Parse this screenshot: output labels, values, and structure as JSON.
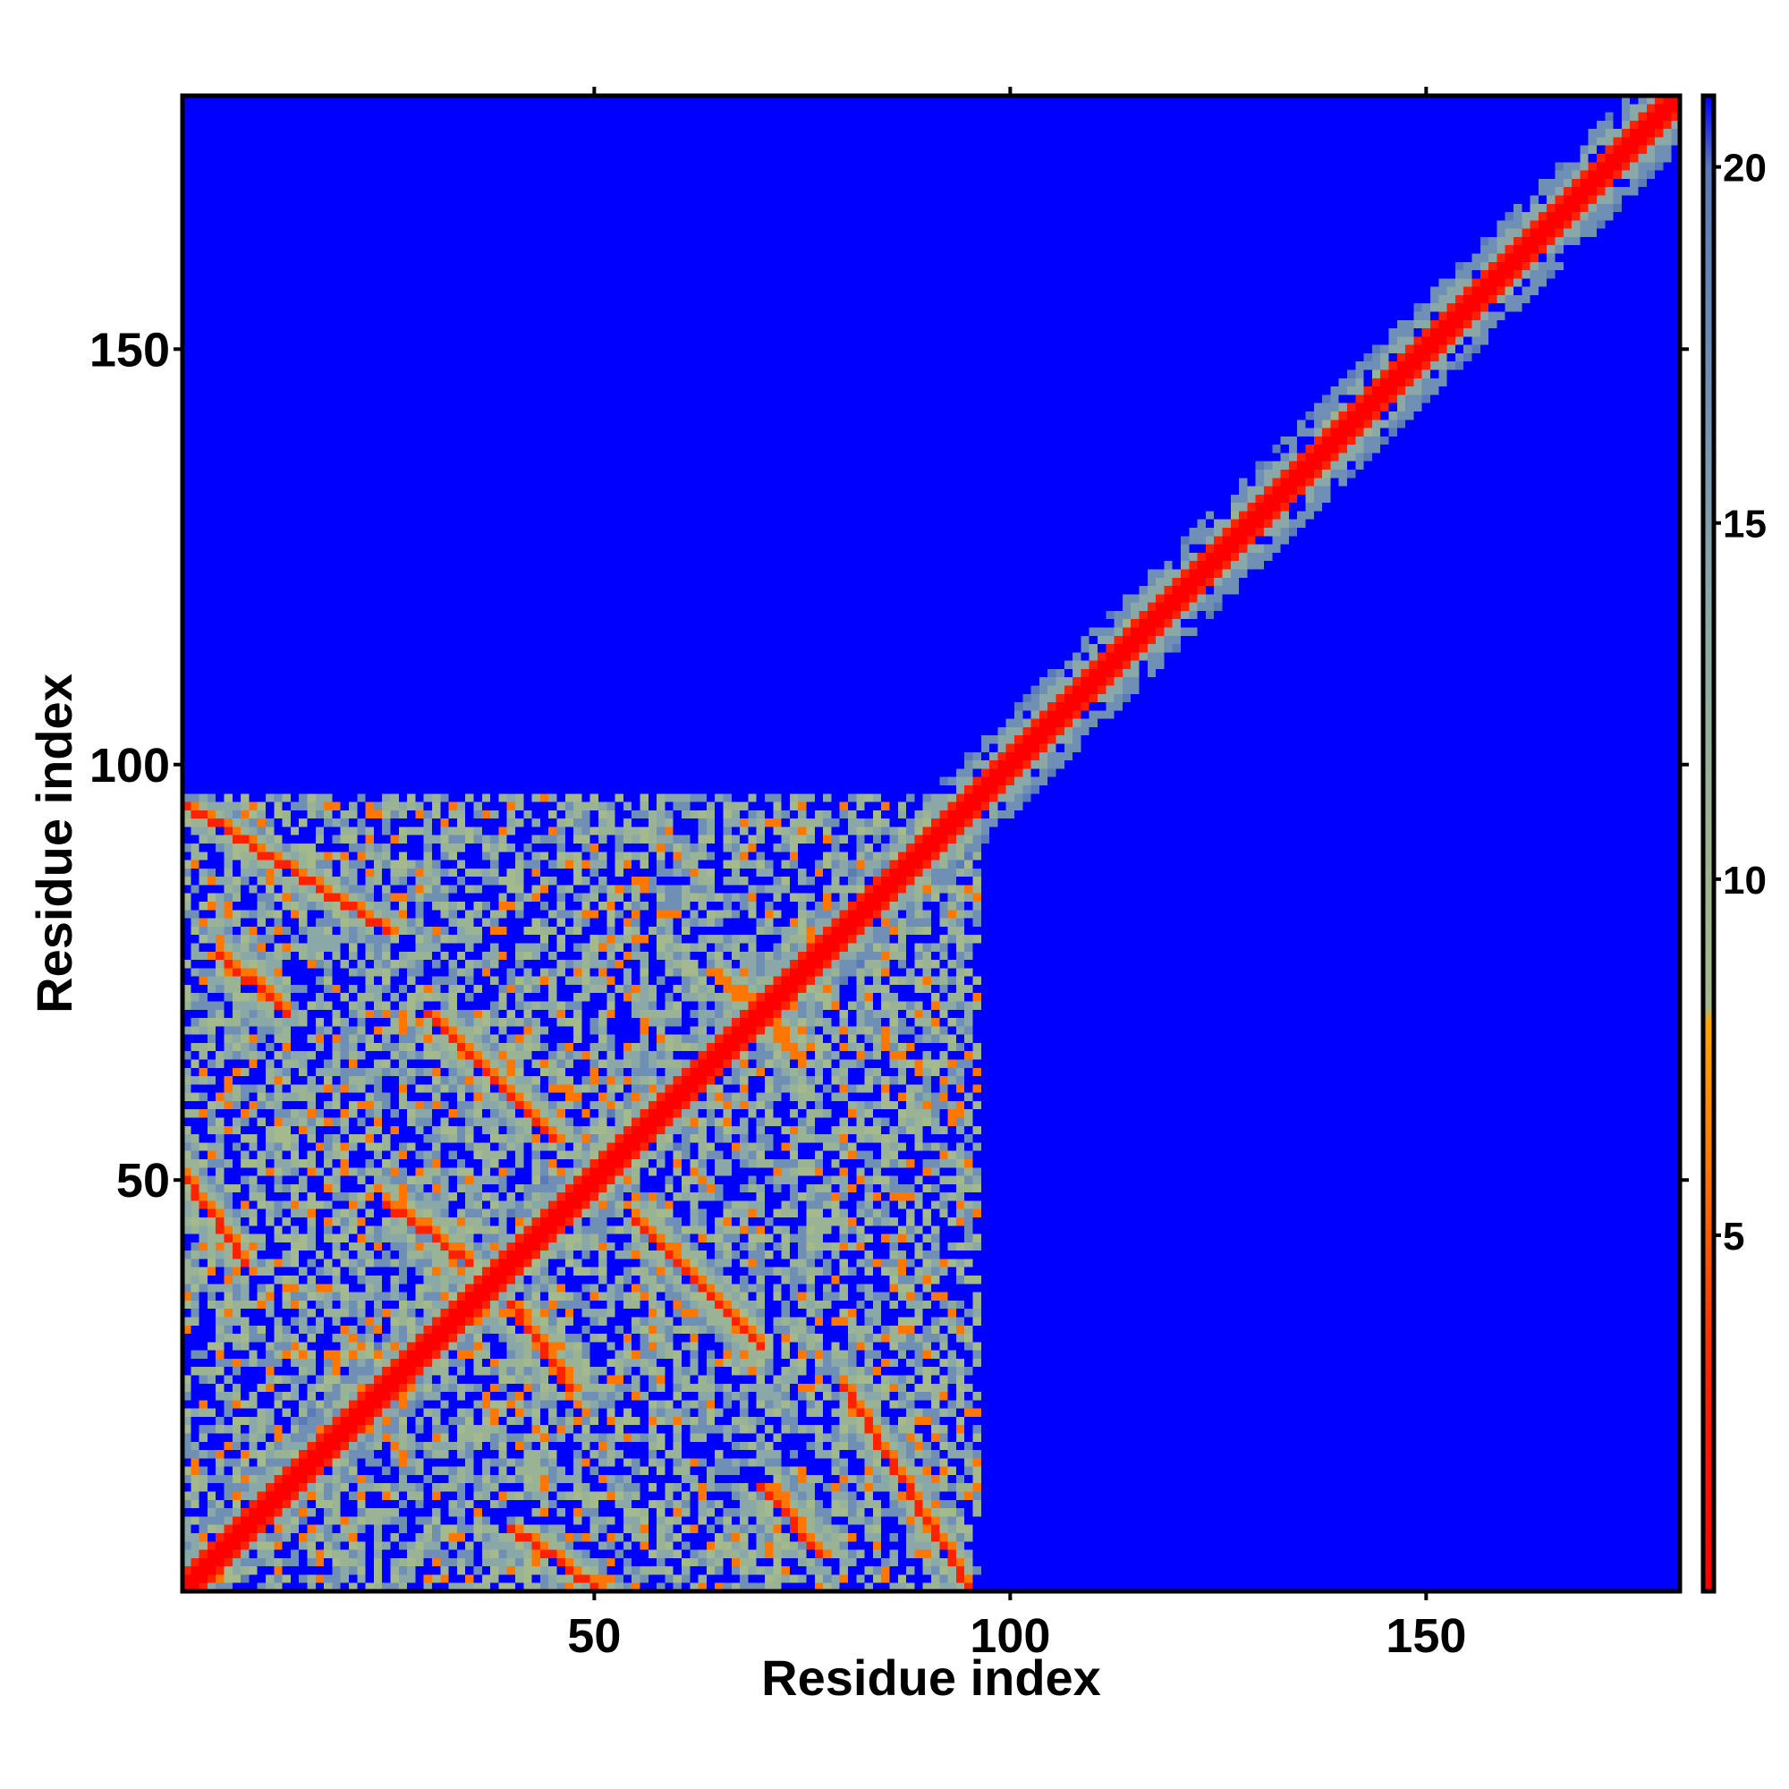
{
  "chart_data": {
    "type": "heatmap",
    "title": "",
    "xlabel": "Residue index",
    "ylabel": "Residue index",
    "xlim": [
      1,
      180
    ],
    "ylim": [
      1,
      180
    ],
    "x_ticks": [
      {
        "value": 50,
        "label": "50"
      },
      {
        "value": 100,
        "label": "100"
      },
      {
        "value": 150,
        "label": "150"
      }
    ],
    "y_ticks": [
      {
        "value": 50,
        "label": "50"
      },
      {
        "value": 100,
        "label": "100"
      },
      {
        "value": 150,
        "label": "150"
      }
    ],
    "matrix_size": 180,
    "symmetric": false,
    "colorbar": {
      "range": [
        0,
        21
      ],
      "ticks": [
        {
          "value": 5,
          "label": "5"
        },
        {
          "value": 10,
          "label": "10"
        },
        {
          "value": 15,
          "label": "15"
        },
        {
          "value": 20,
          "label": "20"
        }
      ],
      "stops": [
        {
          "value": 0,
          "color": "#ff0000"
        },
        {
          "value": 3,
          "color": "#ff2200"
        },
        {
          "value": 6,
          "color": "#ff7700"
        },
        {
          "value": 8,
          "color": "#ffa500"
        },
        {
          "value": 8.2,
          "color": "#a4b98c"
        },
        {
          "value": 11,
          "color": "#9ab394"
        },
        {
          "value": 14,
          "color": "#8aa8a8"
        },
        {
          "value": 17,
          "color": "#6f8fb5"
        },
        {
          "value": 20,
          "color": "#5a7ab8"
        },
        {
          "value": 21,
          "color": "#0000ff"
        }
      ]
    },
    "background_color": "#0000ff",
    "features": [
      {
        "kind": "diagonal",
        "from": 1,
        "to": 180,
        "core_value": 2,
        "halo_width": 6
      },
      {
        "kind": "antiparallel_contact",
        "i_range": [
          1,
          25
        ],
        "j_range": [
          80,
          95
        ],
        "value": 6
      },
      {
        "kind": "antiparallel_contact",
        "i_range": [
          30,
          45
        ],
        "j_range": [
          55,
          70
        ],
        "value": 6
      },
      {
        "kind": "antiparallel_contact",
        "i_range": [
          40,
          50
        ],
        "j_range": [
          1,
          8
        ],
        "value": 6
      },
      {
        "kind": "antiparallel_contact",
        "i_range": [
          70,
          77
        ],
        "j_range": [
          5,
          13
        ],
        "value": 6
      },
      {
        "kind": "antiparallel_contact",
        "i_range": [
          40,
          47
        ],
        "j_range": [
          25,
          35
        ],
        "value": 6
      },
      {
        "kind": "antiparallel_contact",
        "i_range": [
          64,
          72
        ],
        "j_range": [
          68,
          75
        ],
        "value": 7
      },
      {
        "kind": "contact_region",
        "i_range": [
          1,
          96
        ],
        "j_range": [
          1,
          96
        ],
        "value": 12
      }
    ]
  }
}
